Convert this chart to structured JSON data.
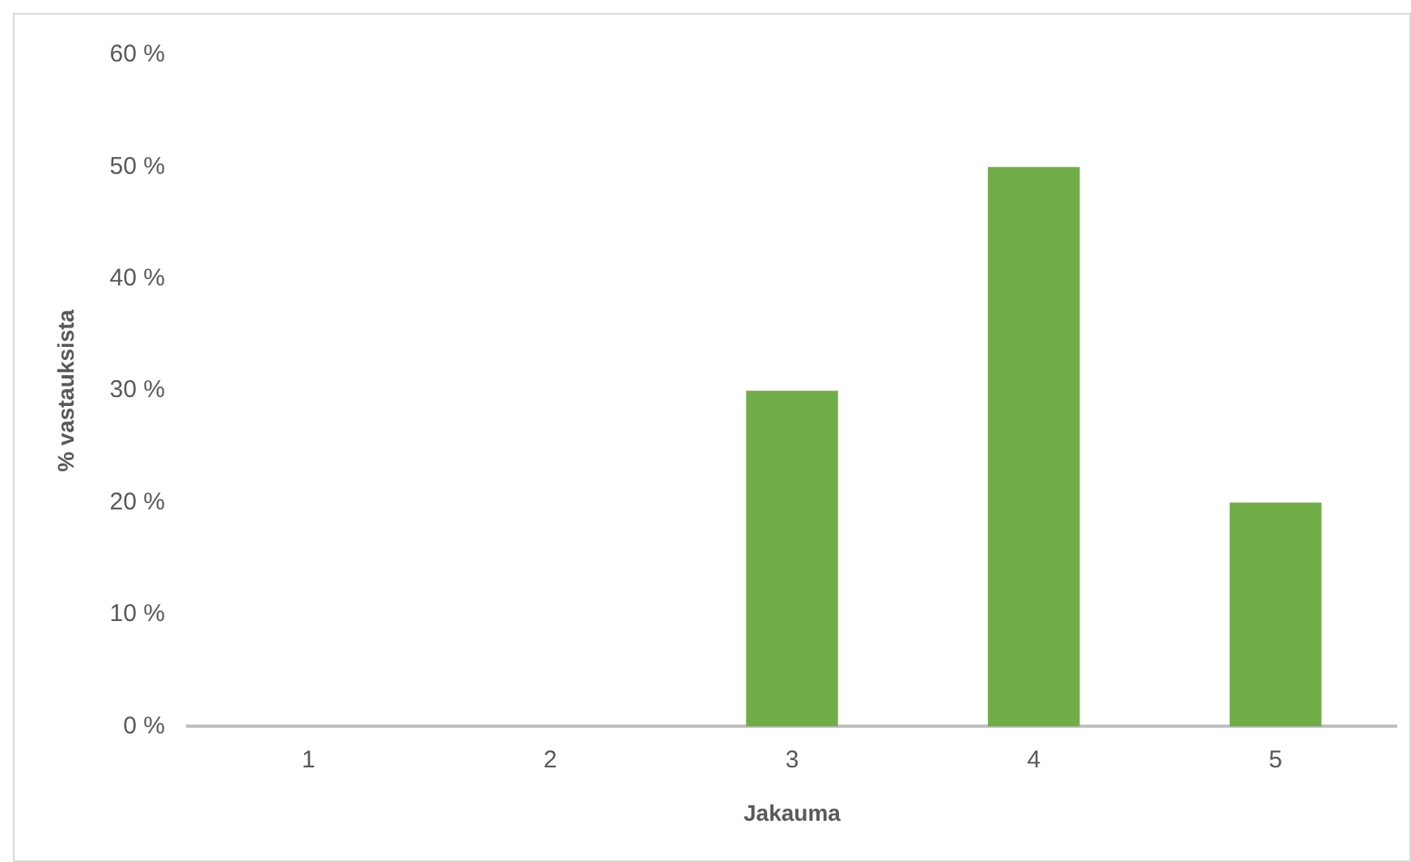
{
  "chart_data": {
    "type": "bar",
    "xlabel": "Jakauma",
    "ylabel": "% vastauksista",
    "categories": [
      "1",
      "2",
      "3",
      "4",
      "5"
    ],
    "values": [
      0,
      0,
      30,
      50,
      20
    ],
    "color": "#70ad47",
    "ylim": [
      0,
      60
    ],
    "yticks": [
      {
        "value": 0,
        "label": "0 %"
      },
      {
        "value": 10,
        "label": "10 %"
      },
      {
        "value": 20,
        "label": "20 %"
      },
      {
        "value": 30,
        "label": "30 %"
      },
      {
        "value": 40,
        "label": "40 %"
      },
      {
        "value": 50,
        "label": "50 %"
      },
      {
        "value": 60,
        "label": "60 %"
      }
    ],
    "grid": false,
    "legend": false
  }
}
